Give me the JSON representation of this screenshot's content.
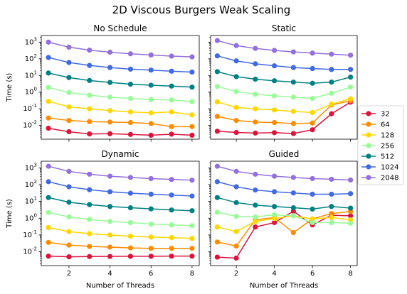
{
  "title": "2D Viscous Burgers Weak Scaling",
  "chart_data": {
    "type": "line",
    "x": [
      1,
      2,
      3,
      4,
      5,
      6,
      7,
      8
    ],
    "xlabel": "Number of Threads",
    "ylabel": "Time (s)",
    "yscale": "log",
    "ylim": [
      0.0015,
      2500
    ],
    "xlim": [
      0.65,
      8.35
    ],
    "xticks": [
      2,
      4,
      6,
      8
    ],
    "legend": {
      "placement": "right",
      "entries": [
        "32",
        "64",
        "128",
        "256",
        "512",
        "1024",
        "2048"
      ]
    },
    "colors": [
      "#dc143c",
      "#ff8c00",
      "#ffd700",
      "#98fb98",
      "#008080",
      "#4169e1",
      "#9370db"
    ],
    "panels": [
      {
        "title": "No Schedule",
        "series": [
          {
            "name": "32",
            "values": [
              0.0068,
              0.0042,
              0.0031,
              0.0032,
              0.0029,
              0.0026,
              0.003,
              0.0026
            ]
          },
          {
            "name": "64",
            "values": [
              0.028,
              0.02,
              0.017,
              0.016,
              0.015,
              0.013,
              0.0085,
              0.0085
            ]
          },
          {
            "name": "128",
            "values": [
              0.28,
              0.13,
              0.1,
              0.078,
              0.065,
              0.057,
              0.065,
              0.043
            ]
          },
          {
            "name": "256",
            "values": [
              1.9,
              0.95,
              0.65,
              0.5,
              0.42,
              0.36,
              0.34,
              0.27
            ]
          },
          {
            "name": "512",
            "values": [
              14,
              7.5,
              5.0,
              3.8,
              3.0,
              2.6,
              2.3,
              2.0
            ]
          },
          {
            "name": "1024",
            "values": [
              120,
              60,
              40,
              30,
              24,
              21,
              18,
              16
            ]
          },
          {
            "name": "2048",
            "values": [
              1000,
              500,
              330,
              250,
              200,
              170,
              145,
              130
            ]
          }
        ]
      },
      {
        "title": "Static",
        "series": [
          {
            "name": "32",
            "values": [
              0.0045,
              0.0038,
              0.0035,
              0.0037,
              0.0033,
              0.0055,
              0.05,
              0.25
            ]
          },
          {
            "name": "64",
            "values": [
              0.035,
              0.02,
              0.016,
              0.015,
              0.013,
              0.014,
              0.17,
              0.3
            ]
          },
          {
            "name": "128",
            "values": [
              0.26,
              0.12,
              0.1,
              0.085,
              0.07,
              0.06,
              0.19,
              0.4
            ]
          },
          {
            "name": "256",
            "values": [
              2.2,
              1.1,
              0.75,
              0.6,
              0.5,
              0.42,
              0.85,
              2.0
            ]
          },
          {
            "name": "512",
            "values": [
              17,
              8.5,
              6.0,
              4.8,
              4.0,
              3.4,
              4.0,
              8.0
            ]
          },
          {
            "name": "1024",
            "values": [
              150,
              75,
              50,
              38,
              30,
              26,
              23,
              23
            ]
          },
          {
            "name": "2048",
            "values": [
              1250,
              620,
              420,
              320,
              260,
              220,
              190,
              165
            ]
          }
        ]
      },
      {
        "title": "Dynamic",
        "series": [
          {
            "name": "32",
            "values": [
              0.0055,
              0.005,
              0.0052,
              0.0053,
              0.0054,
              0.0054,
              0.0055,
              0.0055
            ]
          },
          {
            "name": "64",
            "values": [
              0.036,
              0.025,
              0.021,
              0.019,
              0.017,
              0.016,
              0.016,
              0.016
            ]
          },
          {
            "name": "128",
            "values": [
              0.28,
              0.16,
              0.12,
              0.1,
              0.085,
              0.075,
              0.07,
              0.062
            ]
          },
          {
            "name": "256",
            "values": [
              2.2,
              1.2,
              0.85,
              0.65,
              0.55,
              0.45,
              0.4,
              0.36
            ]
          },
          {
            "name": "512",
            "values": [
              17,
              9.0,
              6.5,
              5.0,
              4.2,
              3.6,
              3.1,
              2.8
            ]
          },
          {
            "name": "1024",
            "values": [
              150,
              75,
              50,
              38,
              31,
              27,
              24,
              21
            ]
          },
          {
            "name": "2048",
            "values": [
              1250,
              620,
              420,
              320,
              270,
              230,
              205,
              185
            ]
          }
        ]
      },
      {
        "title": "Guided",
        "series": [
          {
            "name": "32",
            "values": [
              0.0048,
              0.0042,
              0.3,
              0.55,
              2.6,
              0.4,
              1.5,
              1.4
            ]
          },
          {
            "name": "64",
            "values": [
              0.038,
              0.022,
              0.8,
              1.1,
              0.14,
              0.9,
              1.9,
              2.5
            ]
          },
          {
            "name": "128",
            "values": [
              0.3,
              0.16,
              0.65,
              0.95,
              1.4,
              0.9,
              1.1,
              0.8
            ]
          },
          {
            "name": "256",
            "values": [
              2.3,
              1.3,
              1.2,
              1.6,
              1.4,
              0.55,
              0.55,
              0.5
            ]
          },
          {
            "name": "512",
            "values": [
              17,
              8.5,
              6.0,
              5.0,
              4.2,
              3.5,
              5.0,
              4.0
            ]
          },
          {
            "name": "1024",
            "values": [
              150,
              75,
              48,
              38,
              32,
              27,
              27,
              29
            ]
          },
          {
            "name": "2048",
            "values": [
              1250,
              620,
              420,
              320,
              270,
              230,
              210,
              190
            ]
          }
        ]
      }
    ]
  }
}
